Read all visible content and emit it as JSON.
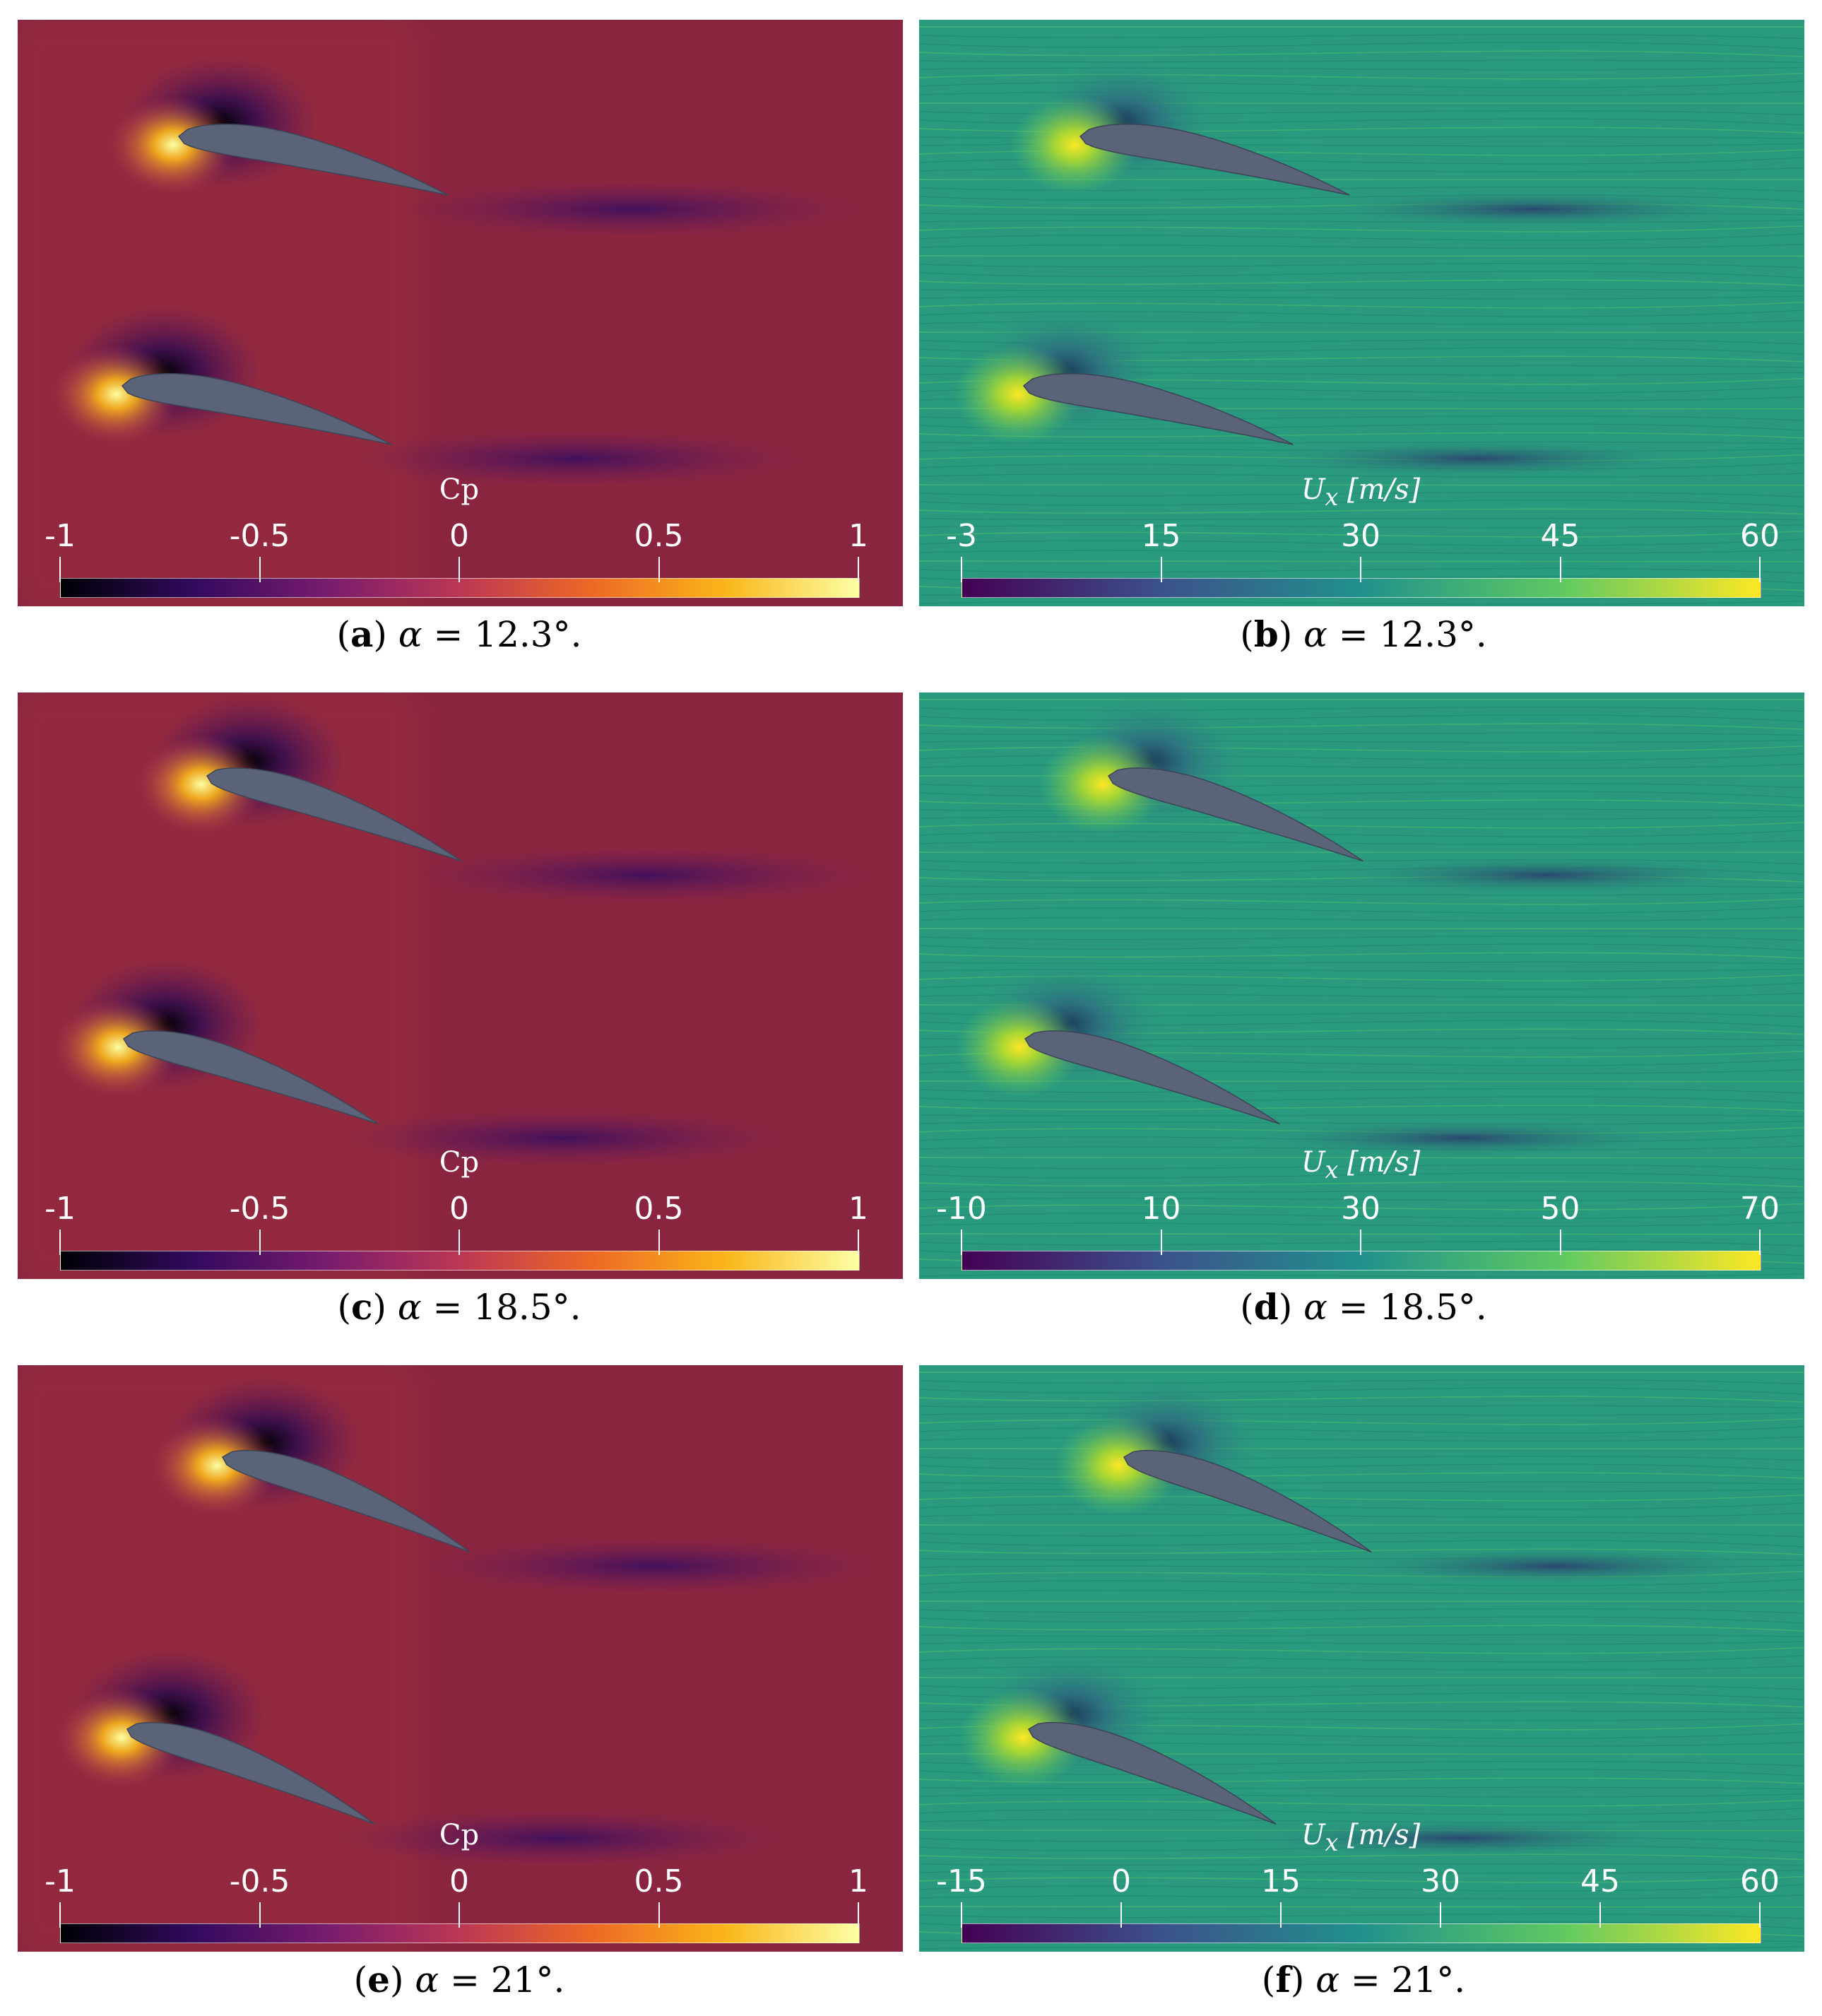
{
  "panels": [
    {
      "id": "a",
      "field": "cp",
      "caption": {
        "letter": "a",
        "alpha": "12.3°."
      },
      "colorbar": {
        "title": "Cp",
        "unit": "",
        "ticks": [
          "-1",
          "-0.5",
          "0",
          "0.5",
          "1"
        ]
      }
    },
    {
      "id": "b",
      "field": "ux",
      "caption": {
        "letter": "b",
        "alpha": "12.3°."
      },
      "colorbar": {
        "title": "U",
        "sub": "x",
        "unit": "[m/s]",
        "ticks": [
          "-3",
          "15",
          "30",
          "45",
          "60"
        ]
      }
    },
    {
      "id": "c",
      "field": "cp",
      "caption": {
        "letter": "c",
        "alpha": "18.5°."
      },
      "colorbar": {
        "title": "Cp",
        "unit": "",
        "ticks": [
          "-1",
          "-0.5",
          "0",
          "0.5",
          "1"
        ]
      }
    },
    {
      "id": "d",
      "field": "ux",
      "caption": {
        "letter": "d",
        "alpha": "18.5°."
      },
      "colorbar": {
        "title": "U",
        "sub": "x",
        "unit": "[m/s]",
        "ticks": [
          "-10",
          "10",
          "30",
          "50",
          "70"
        ]
      }
    },
    {
      "id": "e",
      "field": "cp",
      "caption": {
        "letter": "e",
        "alpha": "21°."
      },
      "colorbar": {
        "title": "Cp",
        "unit": "",
        "ticks": [
          "-1",
          "-0.5",
          "0",
          "0.5",
          "1"
        ]
      }
    },
    {
      "id": "f",
      "field": "ux",
      "caption": {
        "letter": "f",
        "alpha": "21°."
      },
      "colorbar": {
        "title": "U",
        "sub": "x",
        "unit": "[m/s]",
        "ticks": [
          "-15",
          "0",
          "15",
          "30",
          "45",
          "60"
        ]
      }
    }
  ],
  "caption_symbol": "α",
  "colors": {
    "cp_background": "#8a2540",
    "ux_background": "#2a9a7e",
    "airfoil": "#5a6378",
    "inferno": [
      "#000004",
      "#320a5e",
      "#781c6d",
      "#bc3754",
      "#ed6925",
      "#fbb61a",
      "#fcffa4"
    ],
    "viridis": [
      "#440154",
      "#3b528b",
      "#21918c",
      "#5ec962",
      "#fde725"
    ]
  }
}
